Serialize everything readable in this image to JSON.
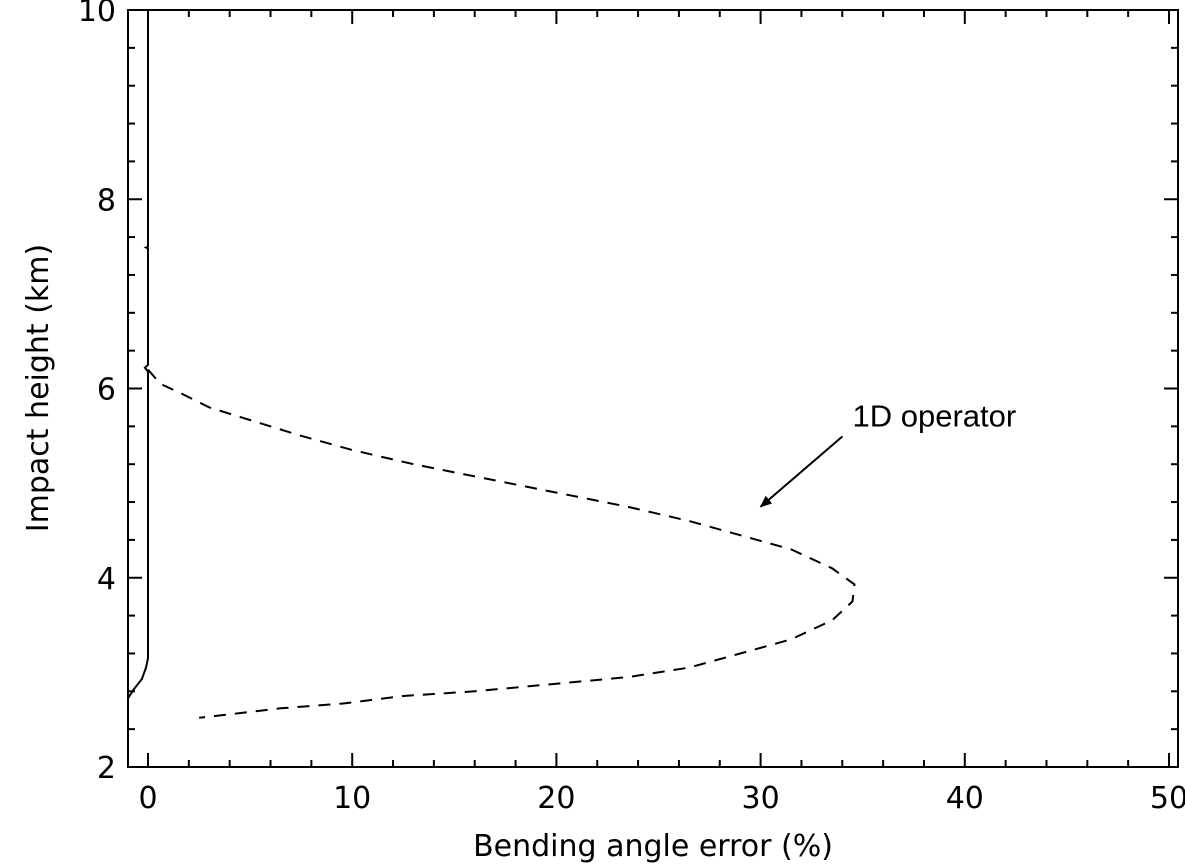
{
  "chart_data": {
    "type": "line",
    "title": "",
    "xlabel": "Bending angle error (%)",
    "ylabel": "Impact height (km)",
    "xlim": [
      0,
      50
    ],
    "ylim": [
      2,
      10
    ],
    "x_ticks": [
      0,
      10,
      20,
      30,
      40,
      50
    ],
    "y_ticks": [
      2,
      4,
      6,
      8,
      10
    ],
    "x_tick_labels": [
      "0",
      "10",
      "20",
      "30",
      "40",
      "50"
    ],
    "y_tick_labels": [
      "2",
      "4",
      "6",
      "8",
      "10"
    ],
    "grid": false,
    "legend": "none",
    "series": [
      {
        "style": "solid",
        "points": [
          [
            0.0,
            10.0
          ],
          [
            0.0,
            7.5
          ],
          [
            -0.1,
            7.49
          ],
          [
            0.0,
            7.48
          ],
          [
            0.0,
            6.25
          ],
          [
            -0.15,
            6.22
          ],
          [
            0.0,
            6.18
          ],
          [
            0.0,
            3.15
          ],
          [
            -0.1,
            3.05
          ],
          [
            -0.3,
            2.93
          ],
          [
            -0.7,
            2.82
          ],
          [
            -1.0,
            2.72
          ]
        ]
      },
      {
        "style": "dashed",
        "points": [
          [
            0.0,
            6.2
          ],
          [
            0.6,
            6.05
          ],
          [
            1.6,
            5.95
          ],
          [
            3.0,
            5.8
          ],
          [
            4.8,
            5.68
          ],
          [
            7.5,
            5.5
          ],
          [
            10.0,
            5.35
          ],
          [
            13.0,
            5.2
          ],
          [
            16.5,
            5.05
          ],
          [
            20.0,
            4.9
          ],
          [
            23.5,
            4.75
          ],
          [
            26.5,
            4.6
          ],
          [
            29.0,
            4.45
          ],
          [
            31.5,
            4.3
          ],
          [
            33.5,
            4.1
          ],
          [
            34.6,
            3.93
          ],
          [
            34.5,
            3.75
          ],
          [
            33.5,
            3.55
          ],
          [
            31.5,
            3.35
          ],
          [
            29.0,
            3.2
          ],
          [
            26.5,
            3.05
          ],
          [
            23.5,
            2.95
          ],
          [
            20.0,
            2.88
          ],
          [
            16.0,
            2.8
          ],
          [
            12.5,
            2.75
          ],
          [
            9.5,
            2.67
          ],
          [
            6.5,
            2.62
          ],
          [
            4.5,
            2.57
          ],
          [
            2.5,
            2.52
          ]
        ]
      }
    ],
    "annotations": [
      {
        "text": "1D operator",
        "x": 30.0,
        "y": 4.75,
        "arrow": true,
        "text_x": 34.5,
        "text_y": 5.6
      }
    ]
  }
}
